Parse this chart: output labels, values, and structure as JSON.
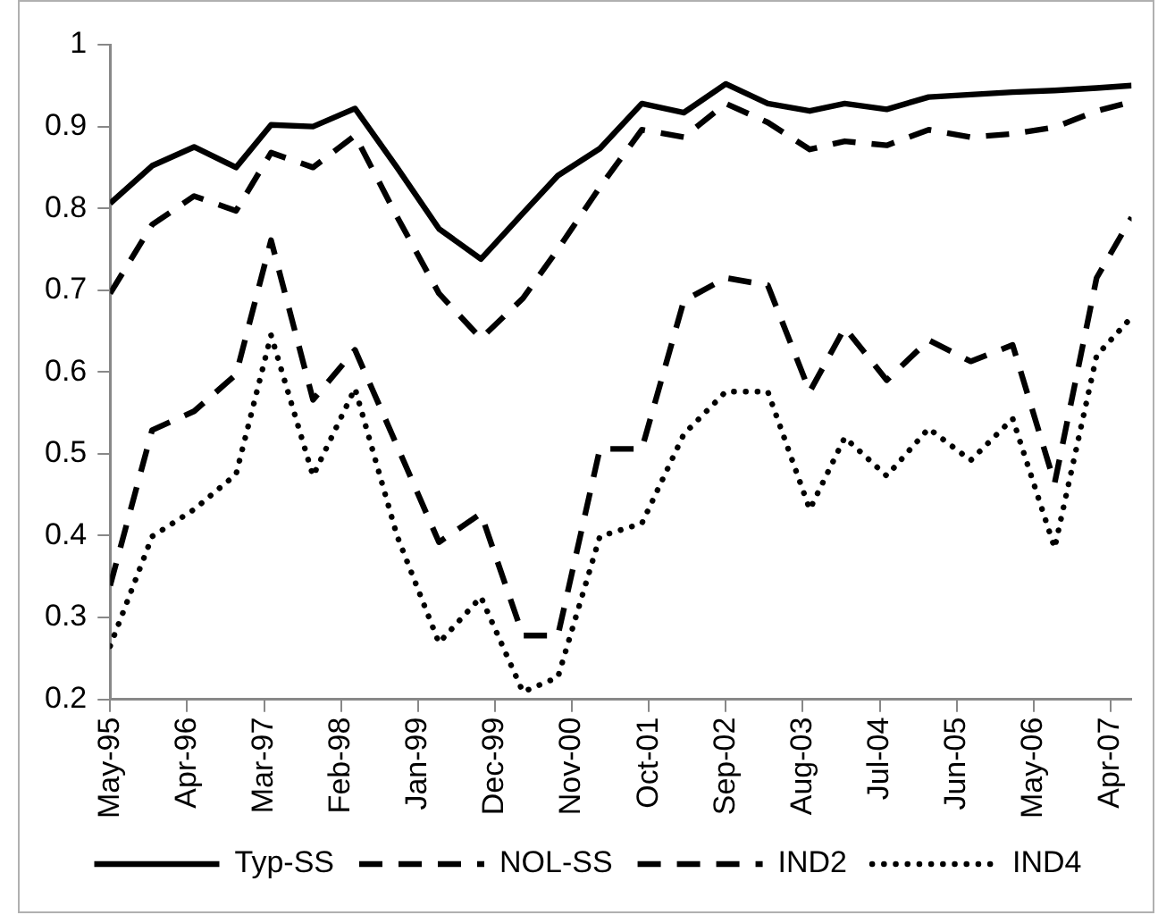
{
  "chart_data": {
    "type": "line",
    "x": [
      "1995-05",
      "1995-11",
      "1996-05",
      "1996-11",
      "1997-04",
      "1997-10",
      "1998-04",
      "1998-10",
      "1999-04",
      "1999-10",
      "2000-04",
      "2000-09",
      "2001-03",
      "2001-09",
      "2002-03",
      "2002-09",
      "2003-03",
      "2003-09",
      "2004-02",
      "2004-08",
      "2005-02",
      "2005-08",
      "2006-02",
      "2006-08",
      "2007-02",
      "2007-07"
    ],
    "series": [
      {
        "name": "Typ-SS",
        "color": "#000000",
        "line_style": "solid",
        "values": [
          0.806,
          0.852,
          0.875,
          0.85,
          0.902,
          0.9,
          0.922,
          0.85,
          0.775,
          0.738,
          0.794,
          0.84,
          0.873,
          0.928,
          0.917,
          0.952,
          0.928,
          0.919,
          0.928,
          0.921,
          0.936,
          0.939,
          0.942,
          0.944,
          0.947,
          0.95
        ]
      },
      {
        "name": "NOL-SS",
        "color": "#000000",
        "line_style": "dashed",
        "values": [
          0.696,
          0.78,
          0.815,
          0.797,
          0.868,
          0.85,
          0.889,
          0.79,
          0.696,
          0.641,
          0.69,
          0.75,
          0.826,
          0.896,
          0.887,
          0.928,
          0.905,
          0.872,
          0.882,
          0.877,
          0.896,
          0.887,
          0.891,
          0.899,
          0.919,
          0.93
        ]
      },
      {
        "name": "IND2",
        "color": "#000000",
        "line_style": "dashed",
        "values": [
          0.339,
          0.529,
          0.552,
          0.597,
          0.761,
          0.566,
          0.627,
          0.51,
          0.392,
          0.427,
          0.278,
          0.278,
          0.506,
          0.506,
          0.687,
          0.715,
          0.706,
          0.576,
          0.654,
          0.59,
          0.639,
          0.613,
          0.633,
          0.464,
          0.715,
          0.789
        ]
      },
      {
        "name": "IND4",
        "color": "#000000",
        "line_style": "dotted",
        "values": [
          0.265,
          0.399,
          0.432,
          0.475,
          0.645,
          0.473,
          0.58,
          0.4,
          0.269,
          0.325,
          0.209,
          0.227,
          0.399,
          0.415,
          0.524,
          0.576,
          0.576,
          0.432,
          0.52,
          0.473,
          0.531,
          0.492,
          0.543,
          0.385,
          0.62,
          0.667
        ]
      }
    ],
    "xlim": [
      "1995-05",
      "2007-07"
    ],
    "xticks": [
      {
        "value": "1995-05",
        "label": "May-95"
      },
      {
        "value": "1996-04",
        "label": "Apr-96"
      },
      {
        "value": "1997-03",
        "label": "Mar-97"
      },
      {
        "value": "1998-02",
        "label": "Feb-98"
      },
      {
        "value": "1999-01",
        "label": "Jan-99"
      },
      {
        "value": "1999-12",
        "label": "Dec-99"
      },
      {
        "value": "2000-11",
        "label": "Nov-00"
      },
      {
        "value": "2001-10",
        "label": "Oct-01"
      },
      {
        "value": "2002-09",
        "label": "Sep-02"
      },
      {
        "value": "2003-08",
        "label": "Aug-03"
      },
      {
        "value": "2004-07",
        "label": "Jul-04"
      },
      {
        "value": "2005-06",
        "label": "Jun-05"
      },
      {
        "value": "2006-05",
        "label": "May-06"
      },
      {
        "value": "2007-04",
        "label": "Apr-07"
      }
    ],
    "ylim": [
      0.2,
      1
    ],
    "yticks": [
      0.2,
      0.3,
      0.4,
      0.5,
      0.6,
      0.7,
      0.8,
      0.9,
      1
    ],
    "grid": false,
    "legend": "bottom",
    "marker": "none"
  }
}
